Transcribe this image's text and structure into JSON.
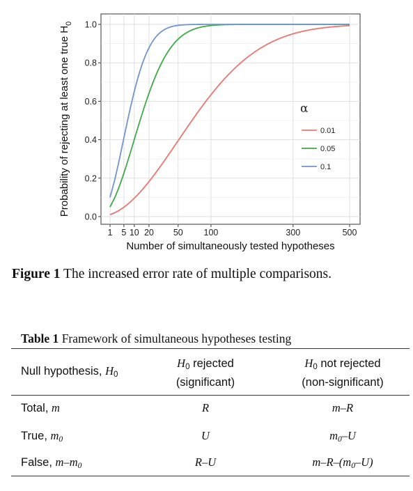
{
  "figure": {
    "label": "Figure 1",
    "caption": "The increased error rate of multiple comparisons."
  },
  "chart_data": {
    "type": "line",
    "xlabel": "Number of simultaneously tested hypotheses",
    "ylabel": "Probability of rejecting at least one true H",
    "ylabel_subscript": "0",
    "xlim": [
      1,
      500
    ],
    "ylim": [
      0,
      1
    ],
    "x_ticks": [
      "1",
      "5",
      "10",
      "20",
      "50",
      "100",
      "300",
      "500"
    ],
    "x_tick_values": [
      1,
      5,
      10,
      20,
      50,
      100,
      300,
      500
    ],
    "y_ticks": [
      "0.0",
      "0.2",
      "0.4",
      "0.6",
      "0.8",
      "1.0"
    ],
    "y_tick_values": [
      0,
      0.2,
      0.4,
      0.6,
      0.8,
      1.0
    ],
    "x_scale": "square root",
    "grid": true,
    "legend": {
      "title": "α",
      "position": "right",
      "entries": [
        "0.01",
        "0.05",
        "0.1"
      ]
    },
    "series": [
      {
        "name": "0.01",
        "alpha": 0.01,
        "color": "#E8776D",
        "x": [
          1,
          5,
          10,
          20,
          50,
          100,
          200,
          300,
          400,
          500
        ],
        "y": [
          0.01,
          0.049,
          0.096,
          0.182,
          0.395,
          0.634,
          0.866,
          0.951,
          0.982,
          0.993
        ]
      },
      {
        "name": "0.05",
        "alpha": 0.05,
        "color": "#3DAA46",
        "x": [
          1,
          5,
          10,
          20,
          50,
          100,
          200,
          300,
          400,
          500
        ],
        "y": [
          0.05,
          0.226,
          0.401,
          0.642,
          0.923,
          0.994,
          1.0,
          1.0,
          1.0,
          1.0
        ]
      },
      {
        "name": "0.1",
        "alpha": 0.1,
        "color": "#6F94CF",
        "x": [
          1,
          5,
          10,
          20,
          50,
          100,
          200,
          300,
          400,
          500
        ],
        "y": [
          0.1,
          0.41,
          0.651,
          0.878,
          0.995,
          1.0,
          1.0,
          1.0,
          1.0,
          1.0
        ]
      }
    ]
  },
  "table": {
    "label": "Table 1",
    "caption": "Framework of simultaneous hypotheses testing",
    "header": {
      "col1": "Null hypothesis, ",
      "col1_var": "H",
      "col1_sub": "0",
      "col2_var": "H",
      "col2_sub": "0",
      "col2_text": " rejected",
      "col2_line2": "(significant)",
      "col3_var": "H",
      "col3_sub": "0",
      "col3_text": " not rejected",
      "col3_line2": "(non-significant)"
    },
    "rows": [
      {
        "label": "Total, ",
        "label_var": "m",
        "label_sub": "",
        "col2": "R",
        "col3": "m–R"
      },
      {
        "label": "True, ",
        "label_var": "m",
        "label_sub": "0",
        "col2": "U",
        "col3_a": "m",
        "col3_a_sub": "0",
        "col3_b": "–U"
      },
      {
        "label": "False, ",
        "label_var": "m–m",
        "label_sub": "0",
        "col2": "R–U",
        "col3_a": "m–R–(m",
        "col3_a_sub": "0",
        "col3_b": "–U)"
      }
    ]
  }
}
